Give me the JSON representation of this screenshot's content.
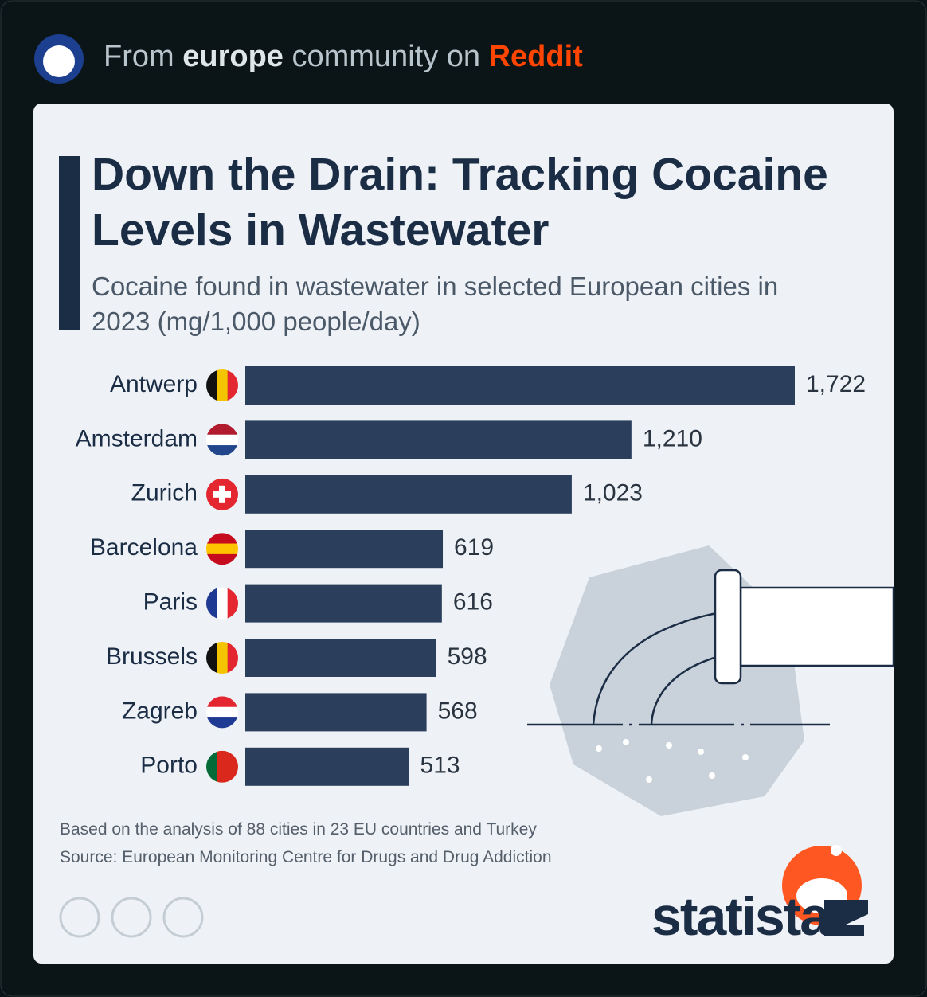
{
  "header": {
    "prefix": "From",
    "community": "europe",
    "middle": "community on",
    "site": "Reddit"
  },
  "chart_data": {
    "type": "bar",
    "orientation": "horizontal",
    "title": "Down the Drain: Tracking Cocaine Levels in Wastewater",
    "subtitle": "Cocaine found in wastewater in selected European cities in 2023 (mg/1,000 people/day)",
    "categories": [
      "Antwerp",
      "Amsterdam",
      "Zurich",
      "Barcelona",
      "Paris",
      "Brussels",
      "Zagreb",
      "Porto"
    ],
    "values": [
      1722,
      1210,
      1023,
      619,
      616,
      598,
      568,
      513
    ],
    "value_labels": [
      "1,722",
      "1,210",
      "1,023",
      "619",
      "616",
      "598",
      "568",
      "513"
    ],
    "color": "#2b3f5c",
    "notes": [
      "Based on the analysis of 88 cities in 23 EU countries and Turkey",
      "Source: European Monitoring Centre for Drugs and Drug Addiction"
    ],
    "brand": "statista"
  }
}
